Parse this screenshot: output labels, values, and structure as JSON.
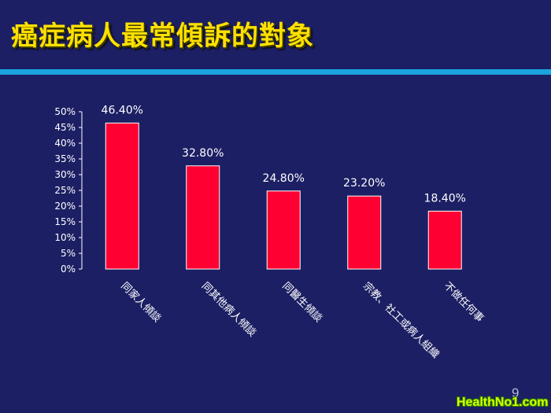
{
  "slide": {
    "title": "癌症病人最常傾訴的對象",
    "page_number": "9",
    "watermark": "HealthNo1.com"
  },
  "colors": {
    "background": "#1c1f63",
    "title": "#ffe000",
    "rule": "#1aa3df",
    "bar": "#ff0033"
  },
  "chart_data": {
    "type": "bar",
    "title": "",
    "xlabel": "",
    "ylabel": "",
    "ylim": [
      0,
      50
    ],
    "yticks": [
      "0%",
      "5%",
      "10%",
      "15%",
      "20%",
      "25%",
      "30%",
      "35%",
      "40%",
      "45%",
      "50%"
    ],
    "categories": [
      "同家人傾談",
      "同其他病人傾談",
      "同醫生傾談",
      "宗教、社工或病人組織",
      "不做任何事"
    ],
    "values": [
      46.4,
      32.8,
      24.8,
      23.2,
      18.4
    ],
    "data_labels": [
      "46.40%",
      "32.80%",
      "24.80%",
      "23.20%",
      "18.40%"
    ],
    "grid": false,
    "legend": "none"
  }
}
